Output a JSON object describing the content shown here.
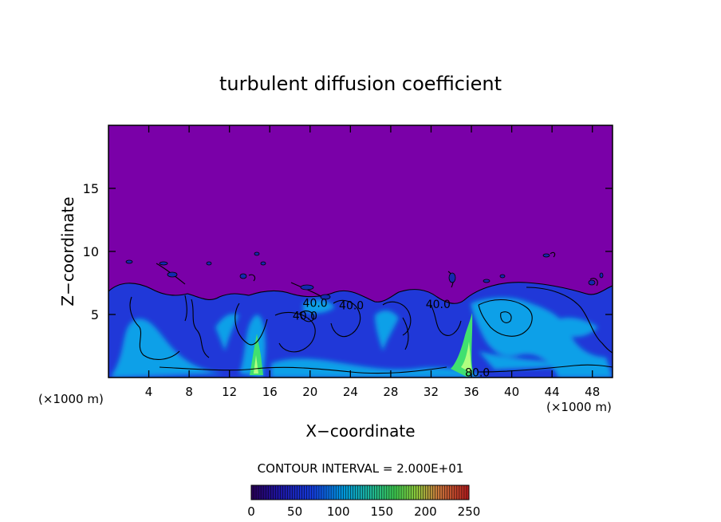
{
  "chart_data": {
    "type": "heatmap",
    "title": "turbulent diffusion coefficient",
    "xlabel": "X−coordinate",
    "ylabel": "Z−coordinate",
    "x_unit_left": "(×1000 m)",
    "x_unit_right": "(×1000 m)",
    "xlim": [
      0,
      50
    ],
    "ylim": [
      0,
      20
    ],
    "xticks": [
      4,
      8,
      12,
      16,
      20,
      24,
      28,
      32,
      36,
      40,
      44,
      48
    ],
    "yticks": [
      5,
      10,
      15
    ],
    "contour_interval_text": "CONTOUR INTERVAL = 2.000E+01",
    "contour_labels": [
      {
        "text": "40.0",
        "x": 20.5,
        "z": 5.6
      },
      {
        "text": "40.0",
        "x": 19.5,
        "z": 4.6
      },
      {
        "text": "40.0",
        "x": 32.7,
        "z": 5.5
      },
      {
        "text": "40.0",
        "x": 24.1,
        "z": 5.4
      },
      {
        "text": "80.0",
        "x": 36.6,
        "z": 0.1
      }
    ],
    "colorbar": {
      "ticks": [
        0,
        50,
        100,
        150,
        200,
        250
      ],
      "range": [
        0,
        250
      ]
    },
    "background_value": 0,
    "turbulent_layer_top_z": 7.3,
    "colors": {
      "background": "#7a00a8",
      "low": "#1a3ad8",
      "mid": "#00a8e0",
      "high": "#40e070"
    }
  }
}
